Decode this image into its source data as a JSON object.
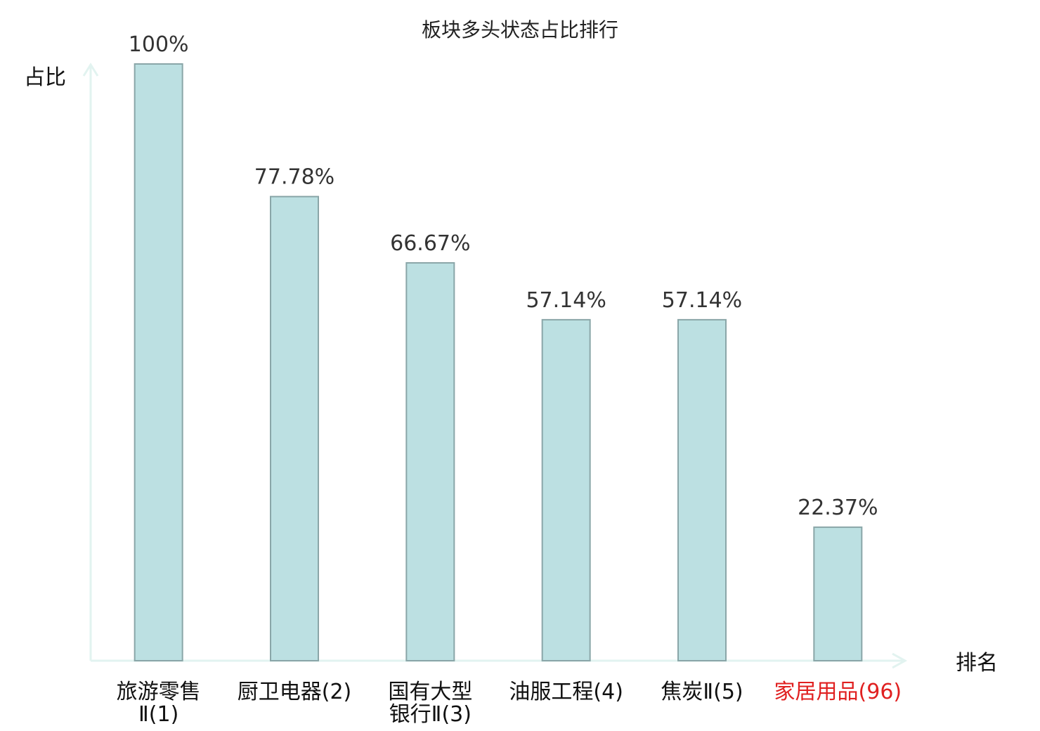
{
  "colors": {
    "bar_fill": "#bce0e2",
    "bar_stroke": "#8aa6a8",
    "axis": "#e2f3f0",
    "highlight": "#e02020",
    "text": "#333333"
  },
  "chart_data": {
    "type": "bar",
    "title": "板块多头状态占比排行",
    "ylabel": "占比",
    "xlabel": "排名",
    "ylim": [
      0,
      100
    ],
    "grid": false,
    "categories": [
      {
        "lines": [
          "旅游零售",
          "Ⅱ(1)"
        ],
        "highlight": false
      },
      {
        "lines": [
          "厨卫电器(2)"
        ],
        "highlight": false
      },
      {
        "lines": [
          "国有大型",
          "银行Ⅱ(3)"
        ],
        "highlight": false
      },
      {
        "lines": [
          "油服工程(4)"
        ],
        "highlight": false
      },
      {
        "lines": [
          "焦炭Ⅱ(5)"
        ],
        "highlight": false
      },
      {
        "lines": [
          "家居用品(96)"
        ],
        "highlight": true
      }
    ],
    "values": [
      100,
      77.78,
      66.67,
      57.14,
      57.14,
      22.37
    ],
    "value_labels": [
      "100%",
      "77.78%",
      "66.67%",
      "57.14%",
      "57.14%",
      "22.37%"
    ]
  }
}
